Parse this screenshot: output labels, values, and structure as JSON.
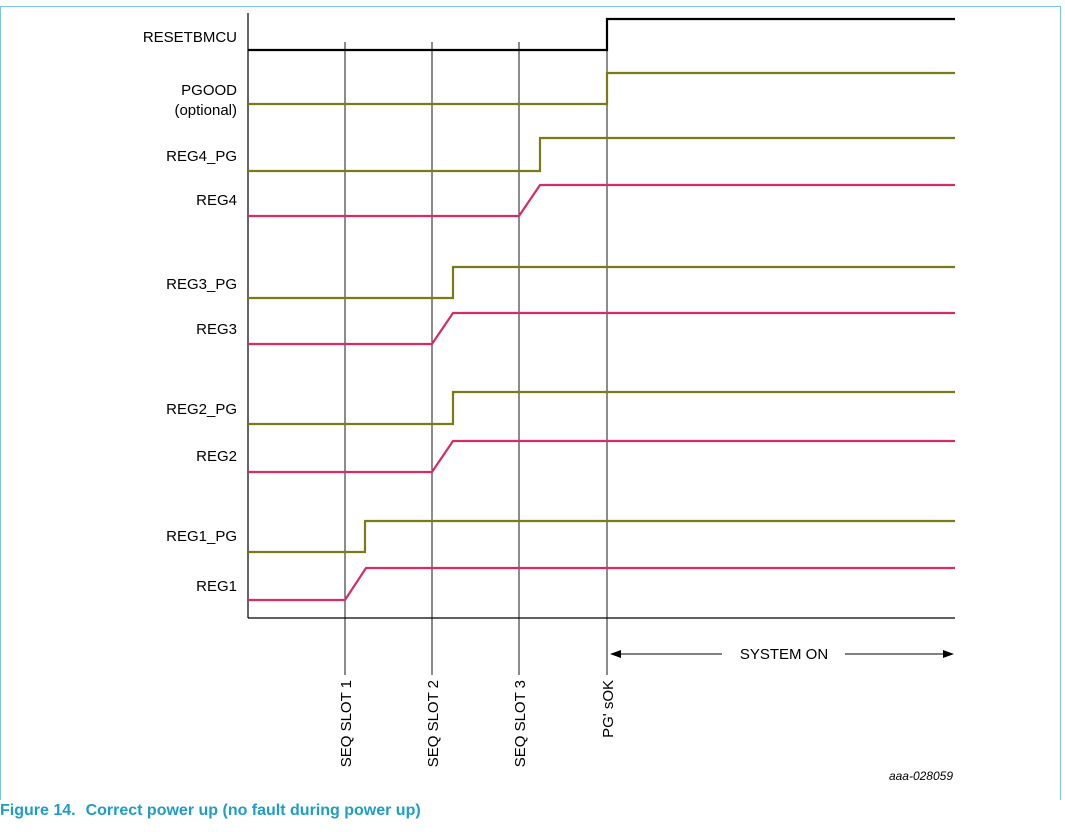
{
  "colors": {
    "frame": "#7fc7dd",
    "caption": "#1f9dc4",
    "reset_trace": "#000000",
    "pg_trace": "#7a7a16",
    "reg_trace": "#d42e63",
    "axis": "#000000"
  },
  "signals": [
    {
      "id": "resetbmcu",
      "label": "RESETBMCU",
      "label2": "",
      "kind": "reset"
    },
    {
      "id": "pgood",
      "label": "PGOOD",
      "label2": "(optional)",
      "kind": "pg"
    },
    {
      "id": "reg4_pg",
      "label": "REG4_PG",
      "label2": "",
      "kind": "pg"
    },
    {
      "id": "reg4",
      "label": "REG4",
      "label2": "",
      "kind": "reg"
    },
    {
      "id": "reg3_pg",
      "label": "REG3_PG",
      "label2": "",
      "kind": "pg"
    },
    {
      "id": "reg3",
      "label": "REG3",
      "label2": "",
      "kind": "reg"
    },
    {
      "id": "reg2_pg",
      "label": "REG2_PG",
      "label2": "",
      "kind": "pg"
    },
    {
      "id": "reg2",
      "label": "REG2",
      "label2": "",
      "kind": "reg"
    },
    {
      "id": "reg1_pg",
      "label": "REG1_PG",
      "label2": "",
      "kind": "pg"
    },
    {
      "id": "reg1",
      "label": "REG1",
      "label2": "",
      "kind": "reg"
    }
  ],
  "markers": [
    {
      "id": "seq1",
      "label": "SEQ SLOT 1"
    },
    {
      "id": "seq2",
      "label": "SEQ SLOT 2"
    },
    {
      "id": "seq3",
      "label": "SEQ SLOT 3"
    },
    {
      "id": "pgok",
      "label": "PG' sOK"
    }
  ],
  "system_on": "SYSTEM ON",
  "figure_id": "aaa-028059",
  "caption": {
    "number": "Figure 14.",
    "title": "Correct power up (no fault during power up)"
  }
}
